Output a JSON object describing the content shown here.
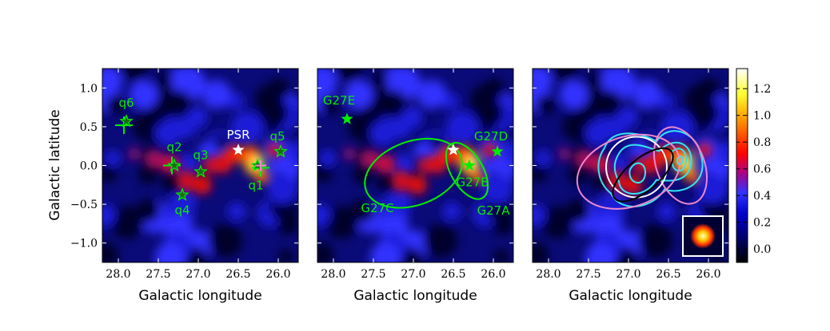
{
  "figure": {
    "xlabel": "Galactic longitude",
    "ylabel": "Galactic latitude"
  },
  "chart_data": [
    {
      "type": "heatmap",
      "panel": "left",
      "xlabel": "Galactic longitude",
      "ylabel": "Galactic latitude",
      "xlim": [
        28.2,
        25.75
      ],
      "ylim": [
        -1.25,
        1.25
      ],
      "xticks": [
        28.0,
        27.5,
        27.0,
        26.5,
        26.0
      ],
      "xticklabels": [
        "28.0",
        "27.5",
        "27.0",
        "26.5",
        "26.0"
      ],
      "yticks": [
        1.0,
        0.5,
        0.0,
        -0.5,
        -1.0
      ],
      "yticklabels": [
        "1.0",
        "0.5",
        "0.0",
        "−0.5",
        "−1.0"
      ],
      "sources": [
        {
          "name": "q6",
          "l": 27.9,
          "b": 0.57
        },
        {
          "name": "q2",
          "l": 27.3,
          "b": 0.0
        },
        {
          "name": "q3",
          "l": 26.97,
          "b": -0.08
        },
        {
          "name": "q4",
          "l": 27.2,
          "b": -0.38
        },
        {
          "name": "q1",
          "l": 26.26,
          "b": 0.0
        },
        {
          "name": "q5",
          "l": 25.97,
          "b": 0.18
        }
      ],
      "crosses": [
        {
          "l": 27.93,
          "b": 0.52
        },
        {
          "l": 27.33,
          "b": 0.0
        },
        {
          "l": 26.22,
          "b": -0.03
        }
      ],
      "pulsar": {
        "name": "PSR",
        "l": 26.5,
        "b": 0.2
      }
    },
    {
      "type": "heatmap",
      "panel": "middle",
      "xlabel": "Galactic longitude",
      "xlim": [
        28.2,
        25.75
      ],
      "ylim": [
        -1.25,
        1.25
      ],
      "xticks": [
        28.0,
        27.5,
        27.0,
        26.5,
        26.0
      ],
      "xticklabels": [
        "28.0",
        "27.5",
        "27.0",
        "26.5",
        "26.0"
      ],
      "sources": [
        {
          "name": "G27E",
          "l": 27.83,
          "b": 0.6
        },
        {
          "name": "G27D",
          "l": 25.95,
          "b": 0.18
        },
        {
          "name": "G27B",
          "l": 26.3,
          "b": 0.0
        }
      ],
      "regions": [
        {
          "name": "G27C",
          "l": 27.0,
          "b": -0.1,
          "a": 0.63,
          "bsemi": 0.4,
          "angle": -20
        },
        {
          "name": "G27A",
          "l": 26.33,
          "b": -0.07,
          "a": 0.39,
          "bsemi": 0.2,
          "angle": 60
        }
      ],
      "pulsar": {
        "l": 26.5,
        "b": 0.2
      }
    },
    {
      "type": "heatmap",
      "panel": "right",
      "xlabel": "Galactic longitude",
      "xlim": [
        28.2,
        25.75
      ],
      "ylim": [
        -1.25,
        1.25
      ],
      "xticks": [
        28.0,
        27.5,
        27.0,
        26.5,
        26.0
      ],
      "xticklabels": [
        "28.0",
        "27.5",
        "27.0",
        "26.5",
        "26.0"
      ],
      "colorbar": {
        "range": [
          -0.1,
          1.35
        ],
        "ticks": [
          "1.2",
          "1.0",
          "0.8",
          "0.6",
          "0.4",
          "0.2",
          "0.0"
        ]
      }
    }
  ]
}
